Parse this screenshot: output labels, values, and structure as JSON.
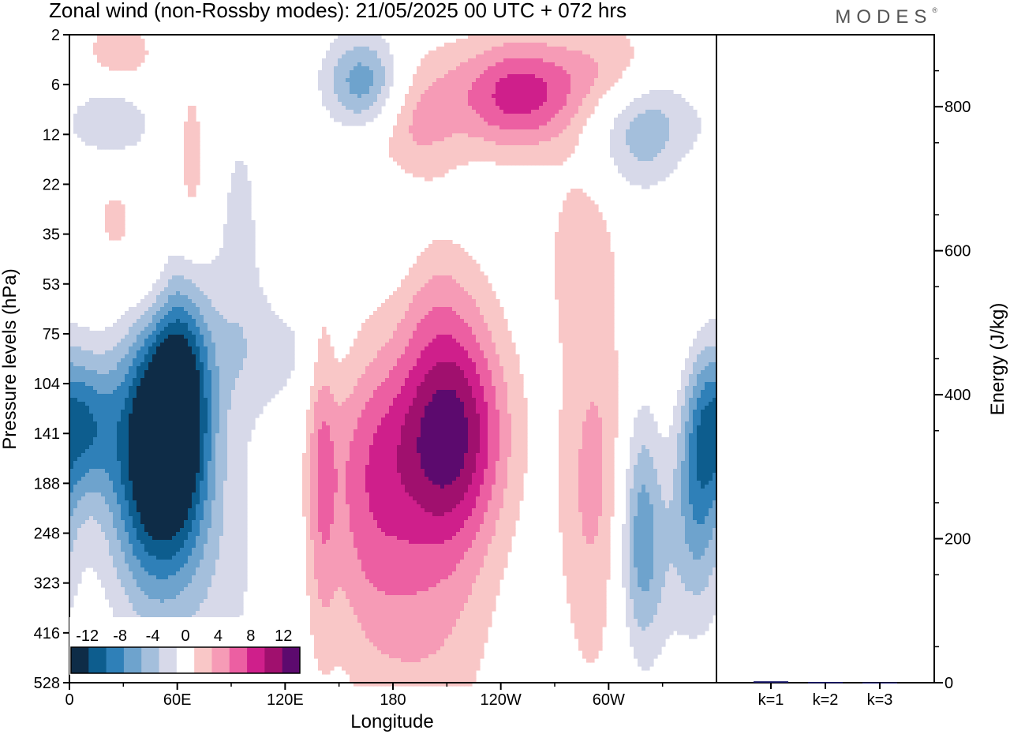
{
  "title": "Zonal wind (non-Rossby modes):  21/05/2025  00 UTC  + 072 hrs",
  "brand": "MODES",
  "colors": {
    "levels": [
      "#0e2c47",
      "#0d5d8e",
      "#2f80b8",
      "#6ea3cd",
      "#a4bfdc",
      "#d7d9e9",
      "#ffffff",
      "#f9c7c7",
      "#f69bb6",
      "#ec5fa2",
      "#cf1f8b",
      "#a0106e",
      "#5c0a6e"
    ]
  },
  "chart_data": [
    {
      "type": "heatmap",
      "title": "Zonal wind (non-Rossby modes):  21/05/2025  00 UTC  + 072 hrs",
      "xlabel": "Longitude",
      "ylabel": "Pressure levels (hPa)",
      "x_ticks": [
        "0",
        "60E",
        "120E",
        "180",
        "120W",
        "60W"
      ],
      "y_ticks": [
        "2",
        "6",
        "12",
        "22",
        "35",
        "53",
        "75",
        "104",
        "141",
        "188",
        "248",
        "323",
        "416",
        "528"
      ],
      "colorbar": {
        "ticks": [
          "-12",
          "-8",
          "-4",
          "0",
          "4",
          "8",
          "12"
        ],
        "bounds": [
          -14,
          14
        ],
        "step": 2
      },
      "features": [
        {
          "lon": 47,
          "lev": 8.4,
          "value": -15,
          "sx": 18,
          "sy": 2.0
        },
        {
          "lon": 62,
          "lev": 7.3,
          "value": -9,
          "sx": 12,
          "sy": 1.6
        },
        {
          "lon": 8,
          "lev": 7.8,
          "value": -8,
          "sx": 12,
          "sy": 1.0
        },
        {
          "lon": 211,
          "lev": 7.9,
          "value": 12.5,
          "sx": 22,
          "sy": 1.6
        },
        {
          "lon": 165,
          "lev": 8.8,
          "value": 6,
          "sx": 18,
          "sy": 2.4
        },
        {
          "lon": 140,
          "lev": 8.6,
          "value": 4.5,
          "sx": 6,
          "sy": 2.6
        },
        {
          "lon": 200,
          "lev": 11.4,
          "value": 4,
          "sx": 26,
          "sy": 2.2
        },
        {
          "lon": 292,
          "lev": 9.3,
          "value": 5,
          "sx": 14,
          "sy": 2.6
        },
        {
          "lon": 350,
          "lev": 8.5,
          "value": -9,
          "sx": 10,
          "sy": 1.8
        },
        {
          "lon": 318,
          "lev": 9.8,
          "value": -6,
          "sx": 8,
          "sy": 1.8
        },
        {
          "lon": 165,
          "lev": 1.0,
          "value": -9,
          "sx": 16,
          "sy": 0.7
        },
        {
          "lon": 185,
          "lev": 1.7,
          "value": 6,
          "sx": 20,
          "sy": 1.0
        },
        {
          "lon": 250,
          "lev": 1.2,
          "value": 9,
          "sx": 26,
          "sy": 0.8
        },
        {
          "lon": 320,
          "lev": 1.8,
          "value": -6,
          "sx": 22,
          "sy": 0.9
        },
        {
          "lon": 25,
          "lev": 1.6,
          "value": -7,
          "sx": 14,
          "sy": 0.8
        },
        {
          "lon": 305,
          "lev": 0.7,
          "value": 4,
          "sx": 22,
          "sy": 0.7
        },
        {
          "lon": 28,
          "lev": 0.6,
          "value": 4,
          "sx": 16,
          "sy": 0.6
        },
        {
          "lon": 25,
          "lev": 2.8,
          "value": 3,
          "sx": 12,
          "sy": 2.2
        },
        {
          "lon": 45,
          "lev": 5.0,
          "value": 3,
          "sx": 10,
          "sy": 1.0
        },
        {
          "lon": 178,
          "lev": 3.8,
          "value": -2.5,
          "sx": 14,
          "sy": 1.8
        },
        {
          "lon": 200,
          "lev": 5.2,
          "value": 2.5,
          "sx": 20,
          "sy": 1.0
        },
        {
          "lon": 285,
          "lev": 4.3,
          "value": 3,
          "sx": 14,
          "sy": 1.4
        },
        {
          "lon": 120,
          "lev": 6.4,
          "value": -2.5,
          "sx": 35,
          "sy": 0.9
        },
        {
          "lon": 82,
          "lev": 10.6,
          "value": -2.5,
          "sx": 22,
          "sy": 2.4
        },
        {
          "lon": 68,
          "lev": 2.6,
          "value": 3,
          "sx": 6,
          "sy": 1.4
        },
        {
          "lon": 342,
          "lev": 6.0,
          "value": 2.5,
          "sx": 10,
          "sy": 2.4
        },
        {
          "lon": 326,
          "lev": 10.6,
          "value": -2.5,
          "sx": 22,
          "sy": 1.4
        },
        {
          "lon": 95,
          "lev": 4.0,
          "value": -2.5,
          "sx": 10,
          "sy": 2.2
        }
      ]
    },
    {
      "type": "bar",
      "ylabel": "Energy (J/kg)",
      "categories": [
        "k=1",
        "k=2",
        "k=3"
      ],
      "values": [
        2,
        1,
        0.5
      ],
      "ylim": [
        0,
        900
      ],
      "y_ticks": [
        0,
        200,
        400,
        600,
        800
      ],
      "bar_color": "#1a1a6e"
    }
  ]
}
